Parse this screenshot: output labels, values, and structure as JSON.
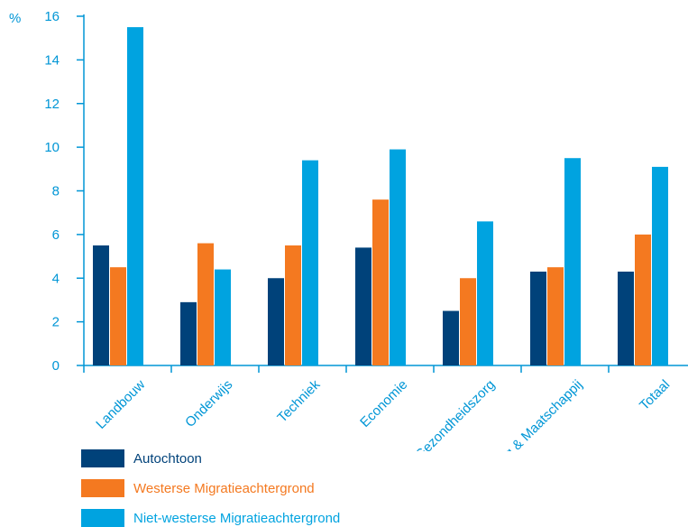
{
  "chart_data": {
    "type": "bar",
    "unit_label": "%",
    "categories": [
      "Landbouw",
      "Onderwijs",
      "Techniek",
      "Economie",
      "Gezondheidszorg",
      "Gedrag & Maatschappij",
      "Totaal"
    ],
    "series": [
      {
        "name": "Autochtoon",
        "color": "#00427a",
        "values": [
          5.5,
          2.9,
          4.0,
          5.4,
          2.5,
          4.3,
          4.3
        ]
      },
      {
        "name": "Westerse Migratieachtergrond",
        "color": "#f47920",
        "values": [
          4.5,
          5.6,
          5.5,
          7.6,
          4.0,
          4.5,
          6.0
        ]
      },
      {
        "name": "Niet-westerse Migratieachtergrond",
        "color": "#00a3e0",
        "values": [
          15.5,
          4.4,
          9.4,
          9.9,
          6.6,
          9.5,
          9.1
        ]
      }
    ],
    "ylim": [
      0,
      16
    ],
    "yticks": [
      "0",
      "2",
      "4",
      "6",
      "8",
      "10",
      "12",
      "14",
      "16"
    ],
    "grid": false,
    "legend_position": "bottom-left",
    "axis_color": "#0096d6"
  }
}
